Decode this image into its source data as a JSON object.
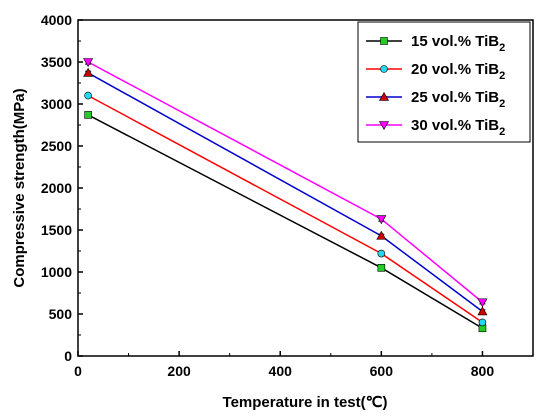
{
  "chart_data": {
    "type": "line",
    "xlabel": "Temperature in test(℃)",
    "ylabel": "Compressive strength(MPa)",
    "xlim": [
      0,
      900
    ],
    "ylim": [
      0,
      4000
    ],
    "x_ticks": [
      "0",
      "200",
      "400",
      "600",
      "800"
    ],
    "y_ticks": [
      "0",
      "500",
      "1000",
      "1500",
      "2000",
      "2500",
      "3000",
      "3500",
      "4000"
    ],
    "x": [
      20,
      600,
      800
    ],
    "legend_position": "top-right",
    "series": [
      {
        "name": "15 vol.% TiB",
        "subscript": "2",
        "color": "#000000",
        "marker_color": "#22cc22",
        "marker": "square",
        "values": [
          2870,
          1050,
          330
        ],
        "errors": [
          20,
          25,
          20
        ]
      },
      {
        "name": "20 vol.% TiB",
        "subscript": "2",
        "color": "#ff0000",
        "marker_color": "#22d8f0",
        "marker": "circle",
        "values": [
          3100,
          1220,
          400
        ],
        "errors": [
          20,
          25,
          20
        ]
      },
      {
        "name": "25 vol.% TiB",
        "subscript": "2",
        "color": "#0000cc",
        "marker_color": "#cc0000",
        "marker": "triangle",
        "values": [
          3370,
          1430,
          530
        ],
        "errors": [
          20,
          20,
          20
        ]
      },
      {
        "name": "30 vol.% TiB",
        "subscript": "2",
        "color": "#ff00ff",
        "marker_color": "#ff00ff",
        "marker": "triangle-down",
        "values": [
          3500,
          1630,
          640
        ],
        "errors": [
          25,
          25,
          20
        ]
      }
    ]
  }
}
